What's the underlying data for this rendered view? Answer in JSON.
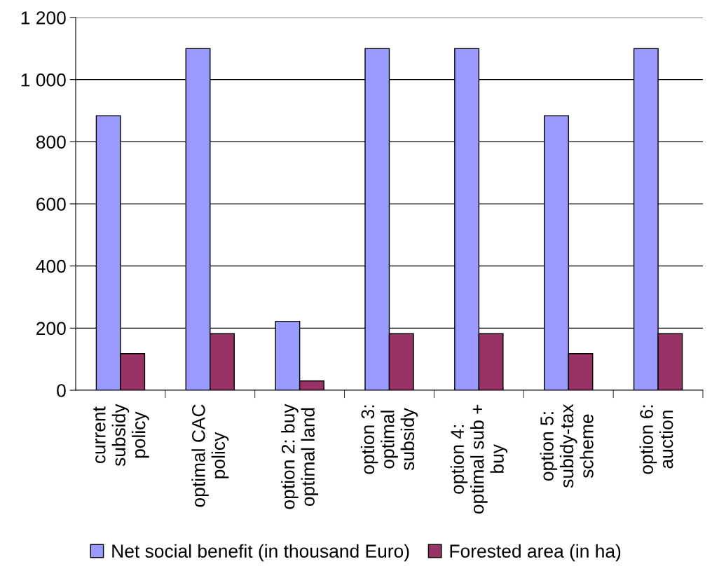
{
  "chart_data": {
    "type": "bar",
    "categories": [
      "current\nsubsidy\npolicy",
      "optimal CAC\npolicy",
      "option 2: buy\noptimal land",
      "option 3:\noptimal\nsubsidy",
      "option 4:\noptimal sub +\nbuy",
      "option 5:\nsubidy-tax\nscheme",
      "option 6:\nauction"
    ],
    "series": [
      {
        "name": "Net social benefit (in thousand Euro)",
        "color": "#9999ff",
        "values": [
          884,
          1100,
          222,
          1100,
          1100,
          884,
          1100
        ]
      },
      {
        "name": "Forested area (in ha)",
        "color": "#993366",
        "values": [
          118,
          182,
          30,
          182,
          182,
          118,
          182
        ]
      }
    ],
    "ylim": [
      0,
      1200
    ],
    "yticks": [
      0,
      200,
      400,
      600,
      800,
      {
        "value": 1000,
        "label": "1 000"
      },
      {
        "value": 1200,
        "label": "1 200"
      }
    ],
    "grid": "y",
    "legend": "bottom"
  }
}
